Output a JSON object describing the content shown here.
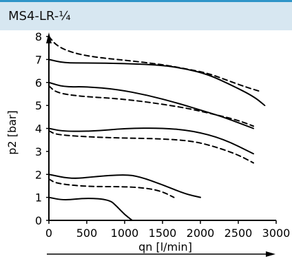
{
  "header": {
    "title": "MS4-LR-¼"
  },
  "chart_data": {
    "type": "line",
    "title": "MS4-LR-¼",
    "xlabel": "qn [l/min]",
    "ylabel": "p2 [bar]",
    "xlim": [
      0,
      3000
    ],
    "ylim": [
      0,
      8
    ],
    "x_ticks": [
      "0",
      "500",
      "1000",
      "1500",
      "2000",
      "2500",
      "3000"
    ],
    "y_ticks": [
      "0",
      "1",
      "2",
      "3",
      "4",
      "5",
      "6",
      "7",
      "8"
    ],
    "grid": false,
    "series": [
      {
        "style": "solid",
        "points": [
          [
            0,
            7.0
          ],
          [
            200,
            6.85
          ],
          [
            500,
            6.85
          ],
          [
            1000,
            6.83
          ],
          [
            1500,
            6.75
          ],
          [
            1800,
            6.6
          ],
          [
            2100,
            6.35
          ],
          [
            2400,
            5.9
          ],
          [
            2700,
            5.4
          ],
          [
            2850,
            5.0
          ]
        ]
      },
      {
        "style": "dashed",
        "points": [
          [
            0,
            8.0
          ],
          [
            100,
            7.6
          ],
          [
            300,
            7.3
          ],
          [
            600,
            7.1
          ],
          [
            1000,
            6.97
          ],
          [
            1500,
            6.78
          ],
          [
            1800,
            6.6
          ],
          [
            2100,
            6.4
          ],
          [
            2350,
            6.1
          ],
          [
            2600,
            5.8
          ],
          [
            2800,
            5.6
          ]
        ]
      },
      {
        "style": "solid",
        "points": [
          [
            0,
            6.0
          ],
          [
            200,
            5.8
          ],
          [
            500,
            5.82
          ],
          [
            900,
            5.7
          ],
          [
            1300,
            5.45
          ],
          [
            1700,
            5.1
          ],
          [
            2000,
            4.8
          ],
          [
            2300,
            4.5
          ],
          [
            2700,
            4.0
          ]
        ]
      },
      {
        "style": "dashed",
        "points": [
          [
            0,
            5.85
          ],
          [
            100,
            5.55
          ],
          [
            400,
            5.4
          ],
          [
            900,
            5.3
          ],
          [
            1300,
            5.15
          ],
          [
            1800,
            4.9
          ],
          [
            2200,
            4.6
          ],
          [
            2500,
            4.35
          ],
          [
            2700,
            4.1
          ]
        ]
      },
      {
        "style": "solid",
        "points": [
          [
            0,
            4.0
          ],
          [
            200,
            3.87
          ],
          [
            600,
            3.88
          ],
          [
            1000,
            4.0
          ],
          [
            1500,
            4.02
          ],
          [
            1900,
            3.9
          ],
          [
            2300,
            3.55
          ],
          [
            2700,
            2.9
          ]
        ]
      },
      {
        "style": "dashed",
        "points": [
          [
            0,
            3.9
          ],
          [
            100,
            3.72
          ],
          [
            600,
            3.62
          ],
          [
            1000,
            3.58
          ],
          [
            1500,
            3.55
          ],
          [
            1900,
            3.45
          ],
          [
            2200,
            3.2
          ],
          [
            2500,
            2.85
          ],
          [
            2700,
            2.5
          ]
        ]
      },
      {
        "style": "solid",
        "points": [
          [
            0,
            2.0
          ],
          [
            300,
            1.8
          ],
          [
            600,
            1.9
          ],
          [
            1000,
            2.0
          ],
          [
            1200,
            1.9
          ],
          [
            1500,
            1.55
          ],
          [
            1800,
            1.15
          ],
          [
            2000,
            1.0
          ]
        ]
      },
      {
        "style": "dashed",
        "points": [
          [
            0,
            1.8
          ],
          [
            100,
            1.6
          ],
          [
            500,
            1.47
          ],
          [
            1000,
            1.47
          ],
          [
            1300,
            1.4
          ],
          [
            1500,
            1.25
          ],
          [
            1650,
            1.0
          ]
        ]
      },
      {
        "style": "solid",
        "points": [
          [
            0,
            1.0
          ],
          [
            200,
            0.87
          ],
          [
            500,
            0.98
          ],
          [
            800,
            0.9
          ],
          [
            900,
            0.6
          ],
          [
            1000,
            0.25
          ],
          [
            1100,
            0.0
          ]
        ]
      }
    ]
  }
}
